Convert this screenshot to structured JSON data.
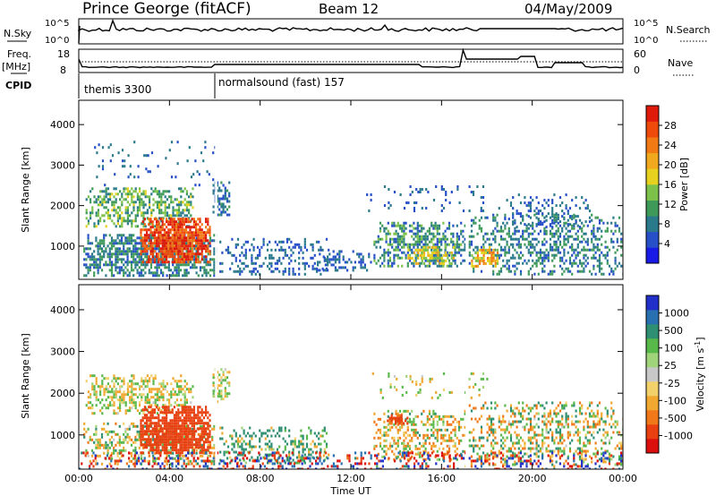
{
  "header": {
    "station": "Prince George (fitACF)",
    "beam": "Beam 12",
    "date": "04/May/2009"
  },
  "strip": {
    "nsky_label": "N.Sky",
    "nsearch_label": "N.Search",
    "nsky_tick_top": "10^5",
    "nsky_tick_bottom": "10^0",
    "nsearch_tick_top": "10^5",
    "nsearch_tick_bottom": "10^0",
    "freq_label_top": "Freq.",
    "freq_label_bottom": "[MHz]",
    "freq_ticks": [
      "18",
      "8"
    ],
    "nave_label": "Nave",
    "nave_ticks": [
      "60",
      "0"
    ],
    "cpid_label": "CPID",
    "cpid_modes": [
      "themis 3300",
      "normalsound (fast) 157"
    ]
  },
  "axes": {
    "range_label": "Slant Range [km]",
    "range_ticks": [
      "4000",
      "3000",
      "2000",
      "1000"
    ],
    "time_label": "Time UT",
    "time_ticks": [
      "00:00",
      "04:00",
      "08:00",
      "12:00",
      "16:00",
      "20:00",
      "00:00"
    ]
  },
  "power_scale": {
    "label": "Power [dB]",
    "ticks": [
      "28",
      "24",
      "20",
      "16",
      "12",
      "8",
      "4"
    ],
    "colors": [
      "#1a1ae6",
      "#2750c8",
      "#2a7a8c",
      "#3f9a5a",
      "#7cc24a",
      "#e6d21e",
      "#f0a81e",
      "#f27a14",
      "#ee4a0c",
      "#e01a0a"
    ]
  },
  "velocity_scale": {
    "label": "Velocity [m s^-1]",
    "ticks": [
      "1000",
      "500",
      "100",
      "25",
      "-25",
      "-100",
      "-500",
      "-1000"
    ],
    "colors": [
      "#2030c8",
      "#2870b0",
      "#2f8f72",
      "#58b84a",
      "#9fd47a",
      "#c8c8c8",
      "#f2d06a",
      "#f0a830",
      "#f07818",
      "#e84010",
      "#dc0f0f"
    ]
  },
  "chart_data": {
    "type": "heatmap",
    "x_range_hours": [
      0,
      24
    ],
    "y_range_km": [
      180,
      4600
    ],
    "panels": [
      {
        "name": "power",
        "blobs": [
          {
            "t0": 0.2,
            "t1": 6.1,
            "r0": 300,
            "r1": 1300,
            "fill": 0.75,
            "vals": [
              4,
              12
            ]
          },
          {
            "t0": 0.3,
            "t1": 5.0,
            "r0": 1500,
            "r1": 2450,
            "fill": 0.6,
            "vals": [
              6,
              16
            ]
          },
          {
            "t0": 2.7,
            "t1": 5.8,
            "r0": 600,
            "r1": 1700,
            "fill": 0.95,
            "vals": [
              22,
              30
            ]
          },
          {
            "t0": 5.9,
            "t1": 6.6,
            "r0": 1800,
            "r1": 2600,
            "fill": 0.6,
            "vals": [
              4,
              10
            ]
          },
          {
            "t0": 6.2,
            "t1": 11.0,
            "r0": 300,
            "r1": 1200,
            "fill": 0.35,
            "vals": [
              4,
              8
            ]
          },
          {
            "t0": 10.5,
            "t1": 13.0,
            "r0": 400,
            "r1": 900,
            "fill": 0.4,
            "vals": [
              4,
              8
            ]
          },
          {
            "t0": 13.0,
            "t1": 17.0,
            "r0": 500,
            "r1": 1600,
            "fill": 0.6,
            "vals": [
              4,
              14
            ]
          },
          {
            "t0": 14.5,
            "t1": 16.5,
            "r0": 600,
            "r1": 1000,
            "fill": 0.6,
            "vals": [
              12,
              20
            ]
          },
          {
            "t0": 17.2,
            "t1": 24.0,
            "r0": 300,
            "r1": 1800,
            "fill": 0.45,
            "vals": [
              4,
              12
            ]
          },
          {
            "t0": 17.3,
            "t1": 18.5,
            "r0": 500,
            "r1": 1000,
            "fill": 0.7,
            "vals": [
              14,
              24
            ]
          },
          {
            "t0": 12.5,
            "t1": 18.0,
            "r0": 1900,
            "r1": 2500,
            "fill": 0.12,
            "vals": [
              4,
              8
            ]
          },
          {
            "t0": 18.5,
            "t1": 22.5,
            "r0": 1500,
            "r1": 2300,
            "fill": 0.25,
            "vals": [
              4,
              8
            ]
          },
          {
            "t0": 0.5,
            "t1": 6.0,
            "r0": 2500,
            "r1": 3600,
            "fill": 0.06,
            "vals": [
              4,
              8
            ]
          }
        ]
      },
      {
        "name": "velocity",
        "blobs": [
          {
            "t0": 0.2,
            "t1": 6.1,
            "r0": 300,
            "r1": 1300,
            "fill": 0.5,
            "vals": [
              -40,
              40
            ]
          },
          {
            "t0": 0.3,
            "t1": 5.0,
            "r0": 1500,
            "r1": 2450,
            "fill": 0.55,
            "vals": [
              -30,
              30
            ]
          },
          {
            "t0": 2.7,
            "t1": 5.8,
            "r0": 600,
            "r1": 1700,
            "fill": 0.95,
            "vals": [
              -400,
              -150
            ]
          },
          {
            "t0": 5.9,
            "t1": 6.6,
            "r0": 1800,
            "r1": 2600,
            "fill": 0.6,
            "vals": [
              -20,
              20
            ]
          },
          {
            "t0": 6.2,
            "t1": 11.0,
            "r0": 300,
            "r1": 1200,
            "fill": 0.35,
            "vals": [
              -25,
              120
            ]
          },
          {
            "t0": 13.0,
            "t1": 17.0,
            "r0": 400,
            "r1": 1600,
            "fill": 0.5,
            "vals": [
              -60,
              40
            ]
          },
          {
            "t0": 13.5,
            "t1": 14.5,
            "r0": 1250,
            "r1": 1500,
            "fill": 0.7,
            "vals": [
              -200,
              -100
            ]
          },
          {
            "t0": 17.2,
            "t1": 24.0,
            "r0": 300,
            "r1": 1800,
            "fill": 0.4,
            "vals": [
              -60,
              60
            ]
          },
          {
            "t0": 0.0,
            "t1": 24.0,
            "r0": 180,
            "r1": 600,
            "fill": 0.35,
            "vals": [
              -1000,
              1000
            ]
          },
          {
            "t0": 12.5,
            "t1": 18.0,
            "r0": 1900,
            "r1": 2500,
            "fill": 0.1,
            "vals": [
              -30,
              30
            ]
          }
        ]
      }
    ]
  }
}
